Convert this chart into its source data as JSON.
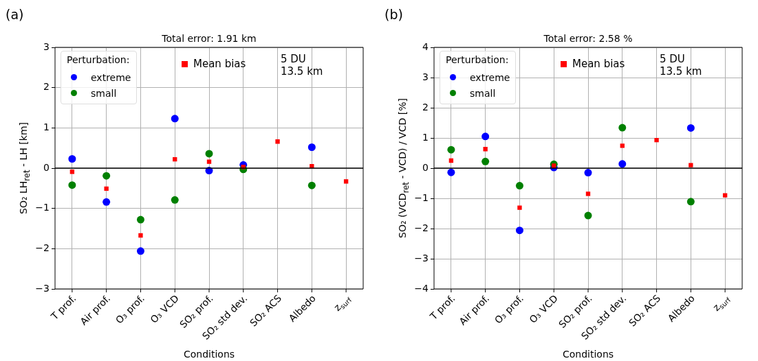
{
  "chart_data": [
    {
      "type": "scatter",
      "title": "Total error: 1.91 km",
      "xlabel": "Conditions",
      "ylabel": "SO₂ LH$_{ret}$ - LH [km]",
      "legend_title": "Perturbation:",
      "categories": [
        "T prof.",
        "Air prof.",
        "O₃ prof.",
        "O₃ VCD",
        "SO₂ prof.",
        "SO₂ std dev.",
        "SO₂ ACS",
        "Albedo",
        "z$_{surf}$"
      ],
      "series": [
        {
          "name": "extreme",
          "color": "#0000ff",
          "marker": "circle",
          "values": [
            0.23,
            -0.84,
            -2.06,
            1.23,
            -0.06,
            0.08,
            null,
            0.52,
            null
          ]
        },
        {
          "name": "small",
          "color": "#008000",
          "marker": "circle",
          "values": [
            -0.42,
            -0.19,
            -1.28,
            -0.79,
            0.36,
            -0.03,
            null,
            -0.43,
            null
          ]
        },
        {
          "name": "Mean bias",
          "color": "#ff0000",
          "marker": "square",
          "values": [
            -0.09,
            -0.51,
            -1.67,
            0.22,
            0.16,
            0.03,
            0.66,
            0.05,
            -0.33
          ]
        }
      ],
      "ylim": [
        -3,
        3
      ],
      "yticks": [
        -3,
        -2,
        -1,
        0,
        1,
        2,
        3
      ],
      "grid": true,
      "legend": "top left",
      "ref_lines": [
        {
          "axis": "y",
          "value": 0,
          "color": "#000000"
        }
      ],
      "annotations": [
        "(a)",
        "5 DU\n13.5 km"
      ]
    },
    {
      "type": "scatter",
      "title": "Total error: 2.58 %",
      "xlabel": "Conditions",
      "ylabel": "SO₂ (VCD$_{ret}$ - VCD) / VCD [%]",
      "legend_title": "Perturbation:",
      "categories": [
        "T prof.",
        "Air prof.",
        "O₃ prof.",
        "O₃ VCD",
        "SO₂ prof.",
        "SO₂ std dev.",
        "SO₂ ACS",
        "Albedo",
        "z$_{surf}$"
      ],
      "series": [
        {
          "name": "extreme",
          "color": "#0000ff",
          "marker": "circle",
          "values": [
            -0.14,
            1.05,
            -2.06,
            0.02,
            -0.15,
            0.14,
            null,
            1.33,
            null
          ]
        },
        {
          "name": "small",
          "color": "#008000",
          "marker": "circle",
          "values": [
            0.61,
            0.22,
            -0.58,
            0.13,
            -1.57,
            1.34,
            null,
            -1.11,
            null
          ]
        },
        {
          "name": "Mean bias",
          "color": "#ff0000",
          "marker": "square",
          "values": [
            0.25,
            0.63,
            -1.31,
            0.08,
            -0.85,
            0.74,
            0.93,
            0.1,
            -0.9
          ]
        }
      ],
      "ylim": [
        -4,
        4
      ],
      "yticks": [
        -4,
        -3,
        -2,
        -1,
        0,
        1,
        2,
        3,
        4
      ],
      "grid": true,
      "legend": "top left",
      "ref_lines": [
        {
          "axis": "y",
          "value": 0,
          "color": "#000000"
        }
      ],
      "annotations": [
        "(b)",
        "5 DU\n13.5 km"
      ]
    }
  ]
}
